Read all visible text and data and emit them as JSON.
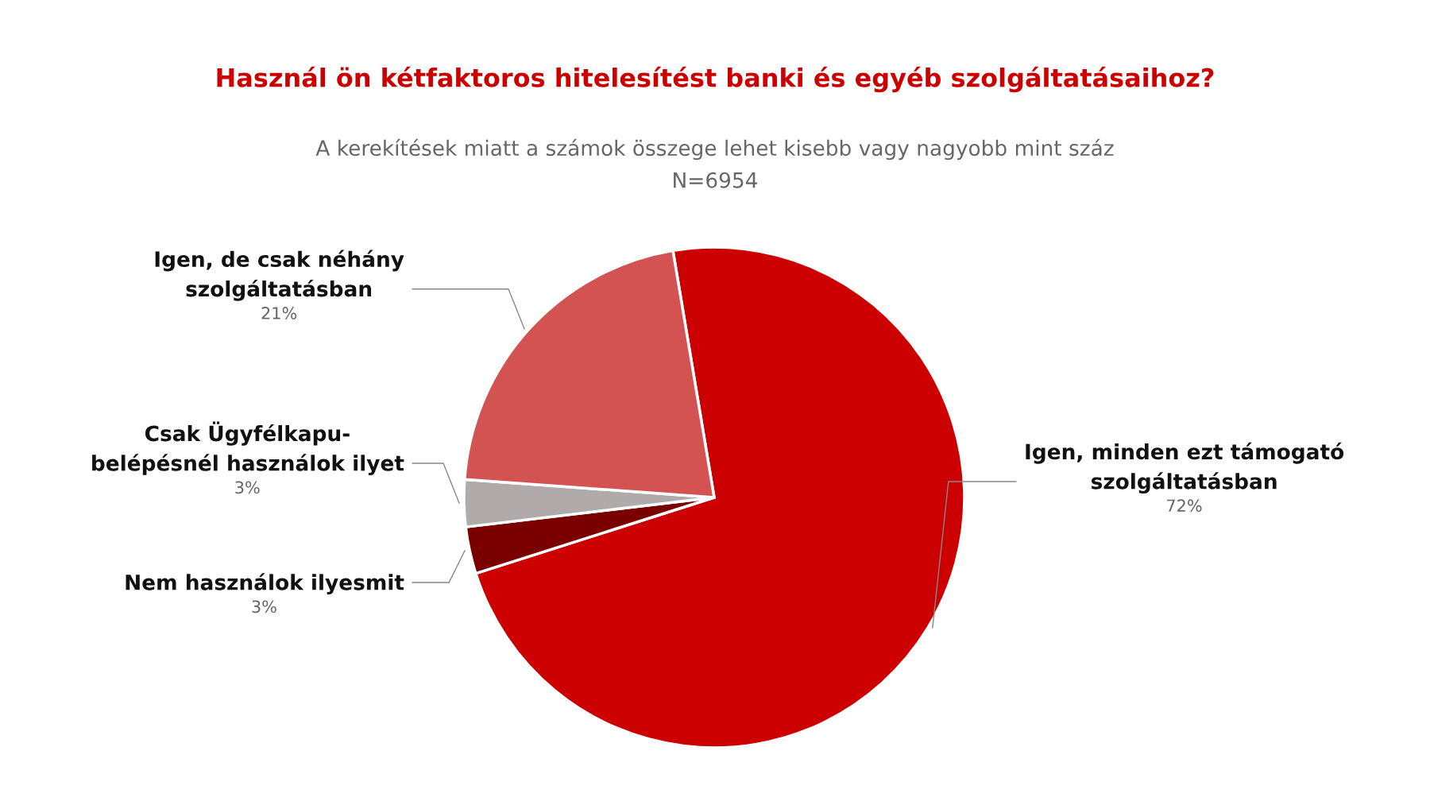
{
  "chart_data": {
    "type": "pie",
    "title": "Használ ön kétfaktoros hitelesítést banki és egyéb szolgáltatásaihoz?",
    "subtitle": "A kerekítések miatt a számok összege lehet kisebb vagy nagyobb mint száz",
    "annotations": [
      "N=6954"
    ],
    "categories": [
      "Igen, minden ezt támogató\nszolgáltatásban",
      "Nem használok ilyesmit",
      "Csak Ügyfélkapu-\nbelépésnél használok ilyet",
      "Igen, de csak néhány\nszolgáltatásban"
    ],
    "values": [
      72,
      3,
      3,
      21
    ],
    "colors": [
      "#cc0000",
      "#7a0000",
      "#b0aaaa",
      "#d35252"
    ],
    "value_labels": [
      "72%",
      "3%",
      "3%",
      "21%"
    ]
  }
}
